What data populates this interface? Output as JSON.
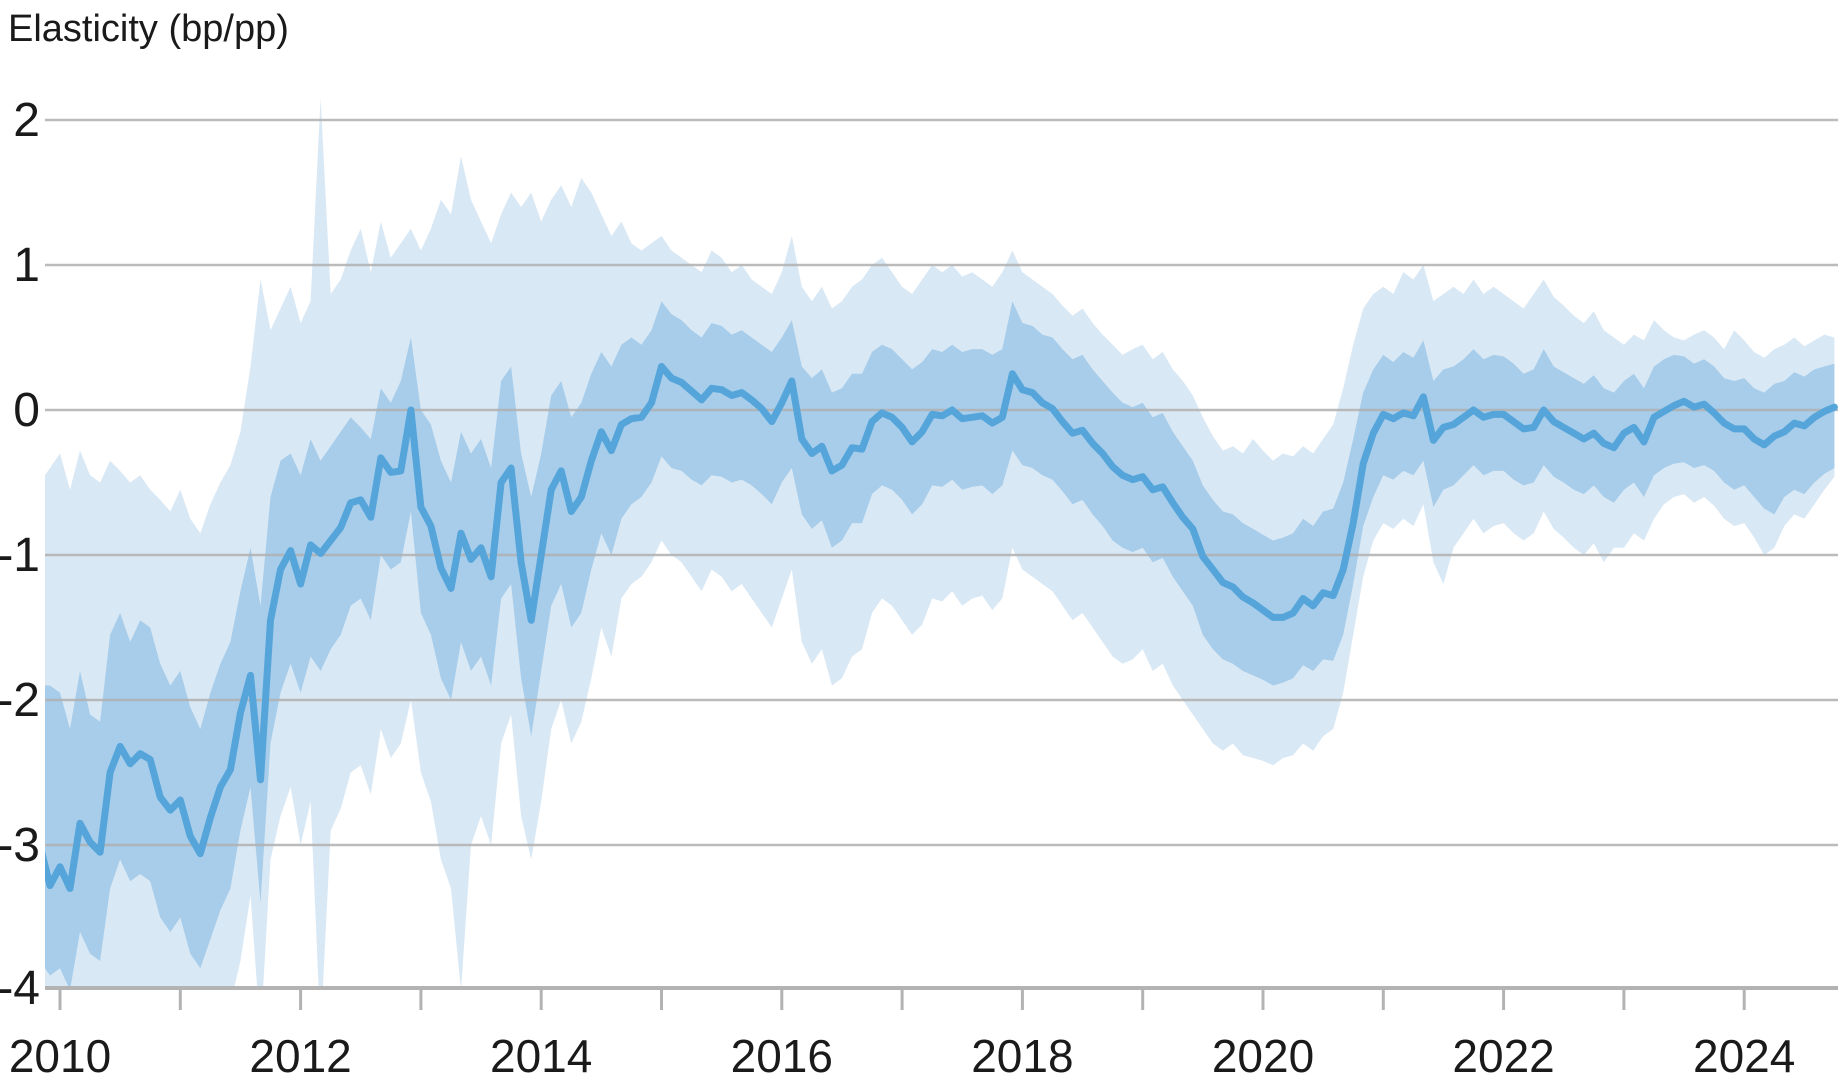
{
  "chart_data": {
    "type": "line",
    "title": "Elasticity (bp/pp)",
    "xlabel": "",
    "ylabel": "Elasticity (bp/pp)",
    "legend_position": "none",
    "grid": "horizontal",
    "ylim": [
      -4,
      2
    ],
    "xlim_years": [
      2009.83,
      2024.79
    ],
    "y_axis": {
      "tick_values": [
        2,
        1,
        0,
        -1,
        -2,
        -3,
        -4
      ],
      "tick_labels": [
        "2",
        "1",
        "0",
        "-1",
        "-2",
        "-3",
        "-4"
      ]
    },
    "x_axis": {
      "tick_years": [
        2010,
        2011,
        2012,
        2013,
        2014,
        2015,
        2016,
        2017,
        2018,
        2019,
        2020,
        2021,
        2022,
        2023,
        2024
      ],
      "label_years": [
        "2010",
        "2012",
        "2014",
        "2016",
        "2018",
        "2020",
        "2022",
        "2024"
      ],
      "start": 2009.8333,
      "step_years": 0.0833333
    },
    "series_names": [
      "median",
      "inner_band_high",
      "inner_band_low",
      "outer_band_high",
      "outer_band_low"
    ],
    "mid": [
      -3.0,
      -3.28,
      -3.15,
      -3.3,
      -2.85,
      -2.98,
      -3.05,
      -2.5,
      -2.32,
      -2.44,
      -2.37,
      -2.41,
      -2.67,
      -2.76,
      -2.69,
      -2.94,
      -3.06,
      -2.81,
      -2.6,
      -2.48,
      -2.09,
      -1.83,
      -2.55,
      -1.45,
      -1.1,
      -0.97,
      -1.2,
      -0.93,
      -0.99,
      -0.9,
      -0.81,
      -0.64,
      -0.62,
      -0.74,
      -0.33,
      -0.43,
      -0.42,
      0.0,
      -0.67,
      -0.8,
      -1.09,
      -1.23,
      -0.85,
      -1.03,
      -0.95,
      -1.15,
      -0.5,
      -0.4,
      -1.05,
      -1.45,
      -1.0,
      -0.55,
      -0.42,
      -0.7,
      -0.6,
      -0.35,
      -0.15,
      -0.28,
      -0.1,
      -0.06,
      -0.05,
      0.05,
      0.3,
      0.22,
      0.19,
      0.13,
      0.07,
      0.15,
      0.14,
      0.1,
      0.12,
      0.07,
      0.01,
      -0.08,
      0.05,
      0.2,
      -0.2,
      -0.3,
      -0.25,
      -0.42,
      -0.38,
      -0.26,
      -0.27,
      -0.08,
      -0.02,
      -0.05,
      -0.12,
      -0.22,
      -0.15,
      -0.03,
      -0.04,
      0.0,
      -0.06,
      -0.05,
      -0.04,
      -0.09,
      -0.05,
      0.25,
      0.14,
      0.12,
      0.05,
      0.01,
      -0.08,
      -0.16,
      -0.14,
      -0.23,
      -0.3,
      -0.39,
      -0.45,
      -0.48,
      -0.46,
      -0.55,
      -0.53,
      -0.64,
      -0.74,
      -0.82,
      -1.01,
      -1.1,
      -1.19,
      -1.22,
      -1.29,
      -1.33,
      -1.38,
      -1.43,
      -1.43,
      -1.4,
      -1.3,
      -1.35,
      -1.26,
      -1.28,
      -1.1,
      -0.78,
      -0.37,
      -0.16,
      -0.03,
      -0.06,
      -0.02,
      -0.04,
      0.09,
      -0.21,
      -0.12,
      -0.1,
      -0.05,
      0.0,
      -0.05,
      -0.03,
      -0.03,
      -0.08,
      -0.13,
      -0.12,
      0.0,
      -0.08,
      -0.12,
      -0.16,
      -0.2,
      -0.16,
      -0.23,
      -0.26,
      -0.16,
      -0.12,
      -0.22,
      -0.05,
      -0.01,
      0.03,
      0.06,
      0.02,
      0.04,
      -0.02,
      -0.09,
      -0.13,
      -0.13,
      -0.2,
      -0.24,
      -0.18,
      -0.15,
      -0.09,
      -0.11,
      -0.05,
      -0.01,
      0.02
    ],
    "inner_hi": [
      -1.9,
      -1.9,
      -1.95,
      -2.2,
      -1.8,
      -2.1,
      -2.15,
      -1.55,
      -1.4,
      -1.6,
      -1.45,
      -1.5,
      -1.75,
      -1.9,
      -1.8,
      -2.05,
      -2.2,
      -1.95,
      -1.75,
      -1.6,
      -1.25,
      -0.95,
      -1.35,
      -0.6,
      -0.35,
      -0.3,
      -0.45,
      -0.2,
      -0.35,
      -0.25,
      -0.15,
      -0.05,
      -0.12,
      -0.2,
      0.15,
      0.05,
      0.2,
      0.5,
      0.0,
      -0.1,
      -0.35,
      -0.5,
      -0.15,
      -0.3,
      -0.2,
      -0.4,
      0.2,
      0.3,
      -0.3,
      -0.6,
      -0.3,
      0.1,
      0.2,
      -0.05,
      0.05,
      0.25,
      0.4,
      0.3,
      0.45,
      0.5,
      0.45,
      0.55,
      0.75,
      0.66,
      0.62,
      0.55,
      0.5,
      0.6,
      0.58,
      0.52,
      0.55,
      0.5,
      0.45,
      0.4,
      0.5,
      0.62,
      0.3,
      0.22,
      0.28,
      0.12,
      0.15,
      0.25,
      0.25,
      0.4,
      0.45,
      0.42,
      0.35,
      0.28,
      0.33,
      0.42,
      0.4,
      0.45,
      0.4,
      0.42,
      0.42,
      0.38,
      0.42,
      0.75,
      0.6,
      0.58,
      0.52,
      0.5,
      0.42,
      0.35,
      0.38,
      0.28,
      0.2,
      0.12,
      0.05,
      0.02,
      0.05,
      -0.05,
      -0.02,
      -0.15,
      -0.25,
      -0.35,
      -0.52,
      -0.62,
      -0.7,
      -0.72,
      -0.78,
      -0.82,
      -0.86,
      -0.9,
      -0.88,
      -0.85,
      -0.75,
      -0.8,
      -0.7,
      -0.68,
      -0.5,
      -0.2,
      0.12,
      0.28,
      0.38,
      0.33,
      0.4,
      0.36,
      0.48,
      0.2,
      0.28,
      0.3,
      0.35,
      0.42,
      0.35,
      0.38,
      0.37,
      0.32,
      0.25,
      0.28,
      0.42,
      0.3,
      0.26,
      0.22,
      0.18,
      0.24,
      0.15,
      0.12,
      0.2,
      0.25,
      0.15,
      0.3,
      0.35,
      0.38,
      0.37,
      0.32,
      0.35,
      0.3,
      0.22,
      0.2,
      0.22,
      0.15,
      0.12,
      0.18,
      0.2,
      0.26,
      0.23,
      0.28,
      0.3,
      0.32
    ],
    "inner_lo": [
      -3.8,
      -3.9,
      -3.85,
      -4.0,
      -3.6,
      -3.75,
      -3.8,
      -3.3,
      -3.1,
      -3.25,
      -3.2,
      -3.25,
      -3.5,
      -3.6,
      -3.5,
      -3.75,
      -3.85,
      -3.65,
      -3.45,
      -3.3,
      -2.9,
      -2.6,
      -3.4,
      -2.3,
      -1.95,
      -1.75,
      -1.95,
      -1.7,
      -1.8,
      -1.65,
      -1.55,
      -1.35,
      -1.3,
      -1.45,
      -1.0,
      -1.1,
      -1.05,
      -0.7,
      -1.4,
      -1.55,
      -1.85,
      -2.0,
      -1.6,
      -1.8,
      -1.7,
      -1.9,
      -1.3,
      -1.2,
      -1.85,
      -2.25,
      -1.8,
      -1.35,
      -1.2,
      -1.5,
      -1.4,
      -1.1,
      -0.85,
      -1.0,
      -0.75,
      -0.65,
      -0.6,
      -0.5,
      -0.32,
      -0.4,
      -0.42,
      -0.48,
      -0.52,
      -0.45,
      -0.46,
      -0.5,
      -0.48,
      -0.52,
      -0.58,
      -0.65,
      -0.5,
      -0.4,
      -0.72,
      -0.82,
      -0.76,
      -0.95,
      -0.9,
      -0.78,
      -0.78,
      -0.58,
      -0.52,
      -0.55,
      -0.62,
      -0.72,
      -0.65,
      -0.52,
      -0.53,
      -0.48,
      -0.55,
      -0.53,
      -0.52,
      -0.58,
      -0.52,
      -0.28,
      -0.38,
      -0.4,
      -0.45,
      -0.48,
      -0.56,
      -0.65,
      -0.62,
      -0.72,
      -0.8,
      -0.9,
      -0.95,
      -0.98,
      -0.95,
      -1.05,
      -1.02,
      -1.15,
      -1.25,
      -1.35,
      -1.55,
      -1.65,
      -1.72,
      -1.75,
      -1.8,
      -1.83,
      -1.86,
      -1.9,
      -1.88,
      -1.85,
      -1.76,
      -1.8,
      -1.72,
      -1.73,
      -1.55,
      -1.2,
      -0.8,
      -0.6,
      -0.45,
      -0.48,
      -0.42,
      -0.45,
      -0.35,
      -0.67,
      -0.55,
      -0.52,
      -0.45,
      -0.38,
      -0.45,
      -0.42,
      -0.42,
      -0.48,
      -0.52,
      -0.5,
      -0.38,
      -0.46,
      -0.5,
      -0.55,
      -0.58,
      -0.52,
      -0.6,
      -0.64,
      -0.55,
      -0.5,
      -0.6,
      -0.45,
      -0.4,
      -0.37,
      -0.36,
      -0.4,
      -0.38,
      -0.42,
      -0.5,
      -0.55,
      -0.52,
      -0.6,
      -0.68,
      -0.72,
      -0.6,
      -0.55,
      -0.58,
      -0.5,
      -0.44,
      -0.4
    ],
    "outer_hi": [
      -0.5,
      -0.4,
      -0.3,
      -0.55,
      -0.28,
      -0.45,
      -0.5,
      -0.35,
      -0.42,
      -0.5,
      -0.45,
      -0.55,
      -0.62,
      -0.7,
      -0.55,
      -0.75,
      -0.85,
      -0.65,
      -0.5,
      -0.38,
      -0.15,
      0.3,
      0.9,
      0.55,
      0.7,
      0.85,
      0.6,
      0.75,
      2.15,
      0.8,
      0.9,
      1.1,
      1.25,
      0.95,
      1.3,
      1.05,
      1.15,
      1.25,
      1.1,
      1.25,
      1.45,
      1.35,
      1.75,
      1.45,
      1.3,
      1.15,
      1.35,
      1.5,
      1.4,
      1.5,
      1.3,
      1.45,
      1.55,
      1.4,
      1.6,
      1.5,
      1.35,
      1.2,
      1.3,
      1.15,
      1.1,
      1.15,
      1.2,
      1.1,
      1.05,
      1.0,
      0.95,
      1.1,
      1.05,
      0.95,
      1.0,
      0.9,
      0.85,
      0.8,
      0.95,
      1.2,
      0.85,
      0.75,
      0.85,
      0.7,
      0.75,
      0.85,
      0.9,
      1.0,
      1.05,
      0.95,
      0.85,
      0.8,
      0.9,
      1.0,
      0.95,
      1.0,
      0.92,
      0.95,
      0.9,
      0.85,
      0.95,
      1.1,
      0.95,
      0.9,
      0.85,
      0.8,
      0.72,
      0.65,
      0.7,
      0.6,
      0.52,
      0.45,
      0.38,
      0.42,
      0.45,
      0.35,
      0.4,
      0.28,
      0.2,
      0.1,
      -0.05,
      -0.18,
      -0.28,
      -0.25,
      -0.3,
      -0.2,
      -0.28,
      -0.35,
      -0.3,
      -0.32,
      -0.25,
      -0.3,
      -0.2,
      -0.1,
      0.15,
      0.45,
      0.7,
      0.8,
      0.85,
      0.8,
      0.95,
      0.9,
      1.0,
      0.75,
      0.8,
      0.85,
      0.8,
      0.9,
      0.8,
      0.85,
      0.8,
      0.75,
      0.7,
      0.8,
      0.9,
      0.78,
      0.72,
      0.65,
      0.6,
      0.68,
      0.55,
      0.5,
      0.45,
      0.52,
      0.48,
      0.62,
      0.55,
      0.5,
      0.48,
      0.52,
      0.55,
      0.5,
      0.42,
      0.55,
      0.48,
      0.4,
      0.36,
      0.42,
      0.45,
      0.5,
      0.44,
      0.48,
      0.52,
      0.5
    ],
    "outer_lo": [
      -4.3,
      -4.3,
      -4.3,
      -4.35,
      -4.2,
      -4.3,
      -4.35,
      -4.25,
      -4.1,
      -4.3,
      -4.2,
      -4.3,
      -4.35,
      -4.3,
      -4.25,
      -4.35,
      -4.3,
      -4.3,
      -4.2,
      -4.1,
      -3.8,
      -3.35,
      -4.3,
      -3.1,
      -2.8,
      -2.6,
      -3.0,
      -2.7,
      -4.3,
      -2.9,
      -2.75,
      -2.5,
      -2.45,
      -2.65,
      -2.2,
      -2.4,
      -2.3,
      -2.0,
      -2.5,
      -2.7,
      -3.1,
      -3.3,
      -4.0,
      -3.0,
      -2.8,
      -3.0,
      -2.3,
      -2.1,
      -2.8,
      -3.1,
      -2.7,
      -2.2,
      -2.0,
      -2.3,
      -2.15,
      -1.85,
      -1.5,
      -1.7,
      -1.3,
      -1.2,
      -1.15,
      -1.05,
      -0.9,
      -1.0,
      -1.05,
      -1.15,
      -1.25,
      -1.1,
      -1.15,
      -1.25,
      -1.2,
      -1.3,
      -1.4,
      -1.5,
      -1.3,
      -1.1,
      -1.6,
      -1.75,
      -1.65,
      -1.9,
      -1.85,
      -1.7,
      -1.65,
      -1.4,
      -1.3,
      -1.35,
      -1.45,
      -1.55,
      -1.48,
      -1.3,
      -1.32,
      -1.25,
      -1.35,
      -1.3,
      -1.28,
      -1.38,
      -1.3,
      -0.95,
      -1.1,
      -1.15,
      -1.2,
      -1.25,
      -1.35,
      -1.45,
      -1.4,
      -1.5,
      -1.6,
      -1.7,
      -1.75,
      -1.72,
      -1.65,
      -1.8,
      -1.75,
      -1.9,
      -2.0,
      -2.1,
      -2.2,
      -2.3,
      -2.35,
      -2.3,
      -2.38,
      -2.4,
      -2.42,
      -2.45,
      -2.4,
      -2.38,
      -2.3,
      -2.35,
      -2.25,
      -2.2,
      -1.95,
      -1.55,
      -1.15,
      -0.9,
      -0.78,
      -0.82,
      -0.75,
      -0.8,
      -0.65,
      -1.05,
      -1.2,
      -0.95,
      -0.85,
      -0.75,
      -0.85,
      -0.8,
      -0.78,
      -0.85,
      -0.9,
      -0.85,
      -0.7,
      -0.82,
      -0.88,
      -0.95,
      -1.0,
      -0.92,
      -1.05,
      -0.95,
      -0.95,
      -0.85,
      -0.9,
      -0.75,
      -0.65,
      -0.6,
      -0.58,
      -0.64,
      -0.6,
      -0.66,
      -0.75,
      -0.8,
      -0.78,
      -0.88,
      -1.0,
      -0.95,
      -0.8,
      -0.72,
      -0.75,
      -0.65,
      -0.55,
      -0.46
    ],
    "colors": {
      "center_line": "#55a5da",
      "inner_band": "#a7cdea",
      "outer_band": "#d9e8f5",
      "grid_line": "#b0b0b0",
      "axis_line": "#b3b3b3",
      "text": "#1a1a1a"
    }
  }
}
